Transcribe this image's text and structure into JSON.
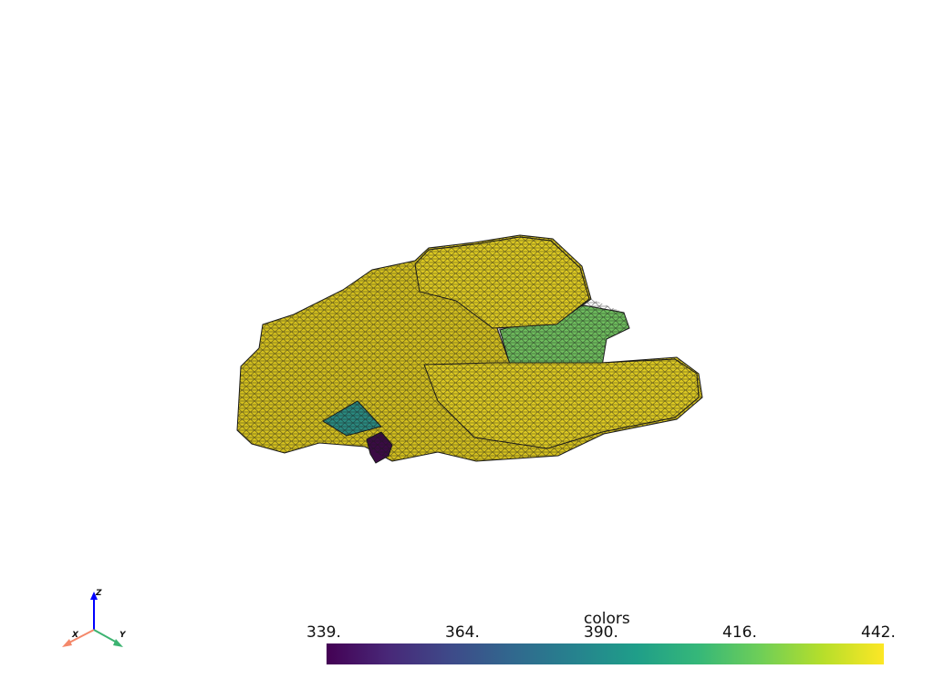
{
  "scalar_bar": {
    "title": "colors",
    "ticks": [
      "339.",
      "364.",
      "390.",
      "416.",
      "442."
    ],
    "range": [
      339,
      442
    ],
    "colormap": "viridis",
    "colormap_stops": [
      "#440154",
      "#482878",
      "#3e4a89",
      "#31688e",
      "#26828e",
      "#1f9e89",
      "#35b779",
      "#6ece58",
      "#b5de2b",
      "#fde725"
    ]
  },
  "mesh": {
    "colors": {
      "high": "#d6c21e",
      "high_light": "#e0cc22",
      "mid": "#6fbf5e",
      "teal": "#2a8a80",
      "low": "#3b0a45",
      "edge": "#1a1a1a"
    }
  },
  "axes_widget": {
    "x_label": "X",
    "y_label": "Y",
    "z_label": "Z",
    "x_color": "#f4886a",
    "y_color": "#3cb371",
    "z_color": "#0000ff"
  }
}
